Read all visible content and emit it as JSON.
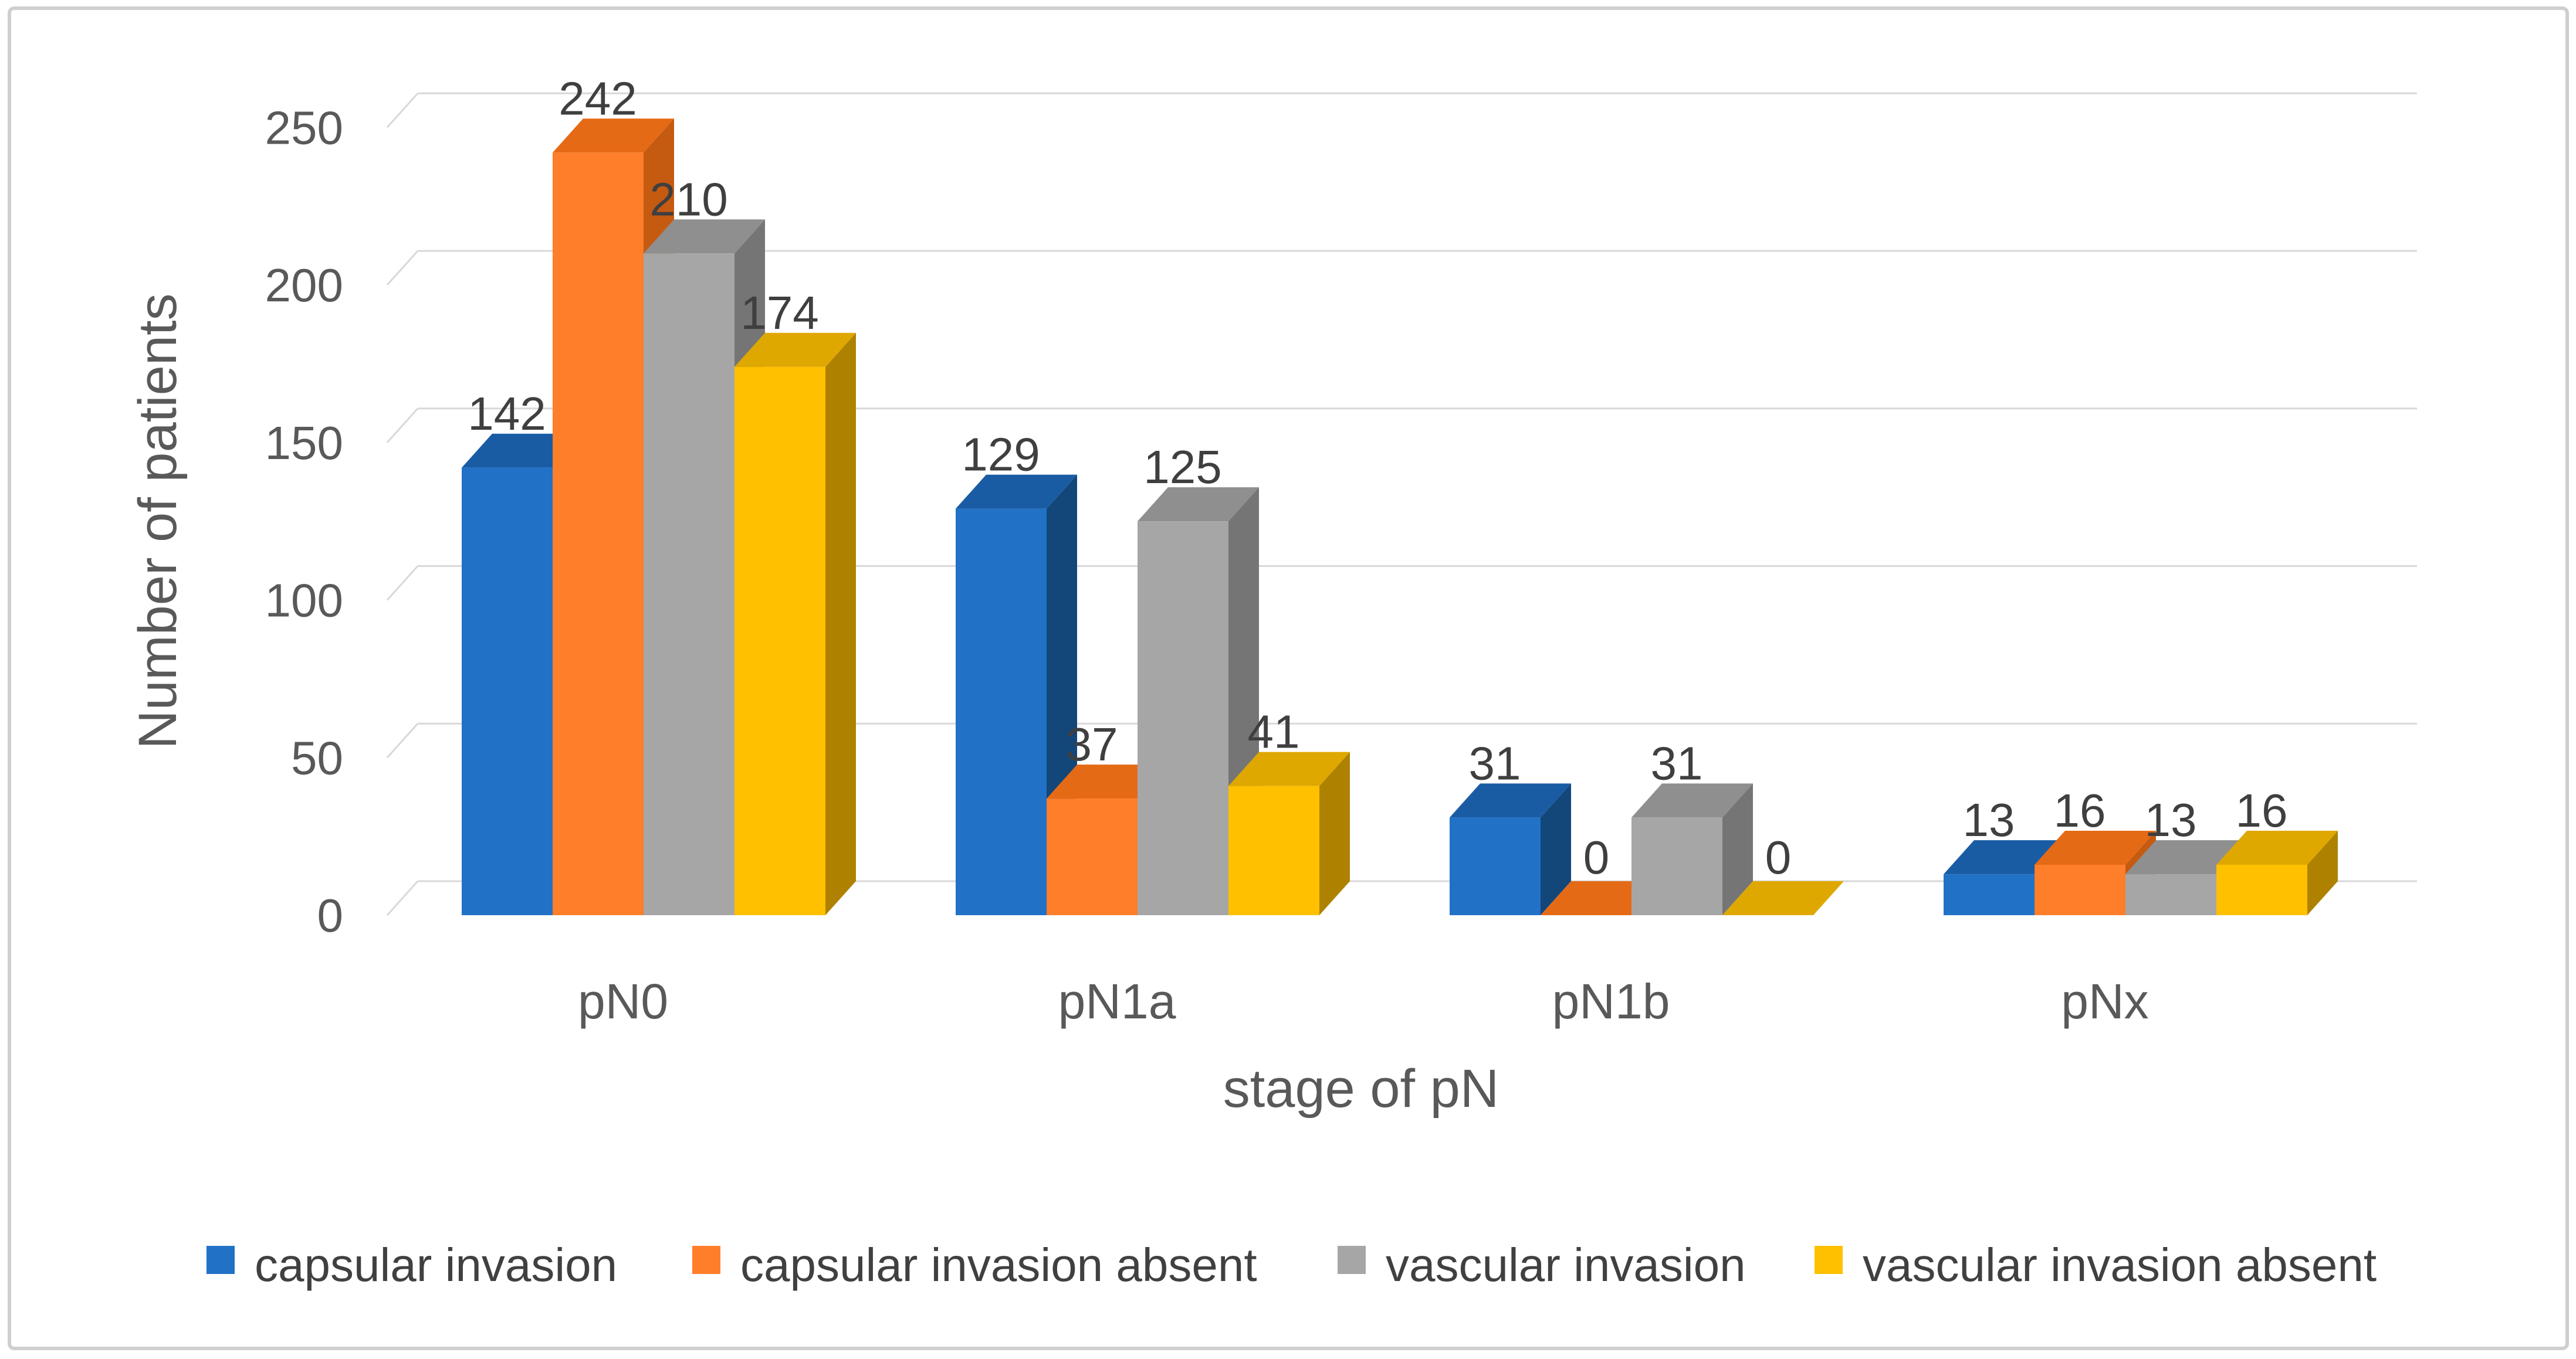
{
  "chart_data": {
    "type": "bar",
    "style": "3d-clustered-column",
    "categories": [
      "pN0",
      "pN1a",
      "pN1b",
      "pNx"
    ],
    "series": [
      {
        "name": "capsular invasion",
        "values": [
          142,
          129,
          31,
          13
        ],
        "color": "#2171C7",
        "color_top": "#1A5CA4",
        "color_side": "#134679"
      },
      {
        "name": "capsular invasion absent",
        "values": [
          242,
          37,
          0,
          16
        ],
        "color": "#FF7E29",
        "color_top": "#E56A15",
        "color_side": "#C55A11"
      },
      {
        "name": "vascular invasion",
        "values": [
          210,
          125,
          31,
          13
        ],
        "color": "#A6A6A6",
        "color_top": "#8F8F8F",
        "color_side": "#757575"
      },
      {
        "name": "vascular invasion absent",
        "values": [
          174,
          41,
          0,
          16
        ],
        "color": "#FFC000",
        "color_top": "#DFA800",
        "color_side": "#AE8200"
      }
    ],
    "xlabel": "stage of pN",
    "ylabel": "Number of patients",
    "ylim": [
      0,
      250
    ],
    "ytick_step": 50,
    "yticks": [
      "0",
      "50",
      "100",
      "150",
      "200",
      "250"
    ],
    "grid": true,
    "legend_position": "bottom",
    "data_labels": true
  },
  "colors": {
    "background": "#FFFFFF",
    "frame_border": "#CFCFCF",
    "gridline": "#D8D8D8",
    "tick_text": "#595959",
    "axis_title_text": "#595959",
    "value_label_text": "#3F3F3F",
    "legend_text": "#404040"
  }
}
